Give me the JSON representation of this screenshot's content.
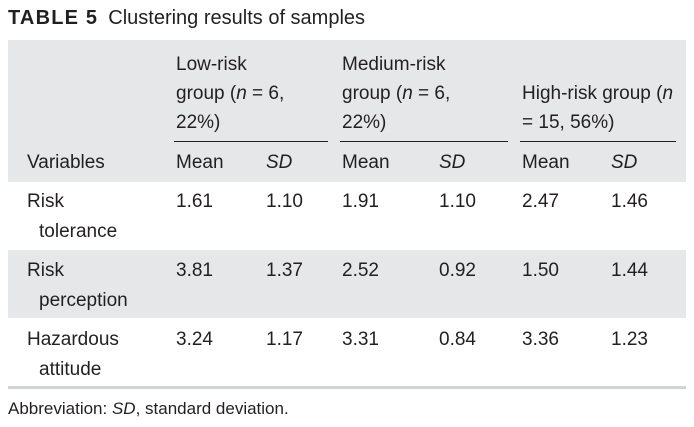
{
  "caption": {
    "label": "TABLE 5",
    "title": "Clustering results of samples"
  },
  "table": {
    "groups": [
      {
        "pre": "Low-risk group (",
        "n": "n",
        "post": " = 6, 22%)"
      },
      {
        "pre": "Medium-risk group (",
        "n": "n",
        "post": " = 6, 22%)"
      },
      {
        "pre": "High-risk group (",
        "n": "n",
        "post": " = 15, 56%)"
      }
    ],
    "variables_header": "Variables",
    "mean_label": "Mean",
    "sd_label": "SD",
    "rows": [
      {
        "variable": [
          "Risk",
          "tolerance"
        ],
        "values": [
          "1.61",
          "1.10",
          "1.91",
          "1.10",
          "2.47",
          "1.46"
        ]
      },
      {
        "variable": [
          "Risk",
          "perception"
        ],
        "values": [
          "3.81",
          "1.37",
          "2.52",
          "0.92",
          "1.50",
          "1.44"
        ]
      },
      {
        "variable": [
          "Hazardous",
          "attitude"
        ],
        "values": [
          "3.24",
          "1.17",
          "3.31",
          "0.84",
          "3.36",
          "1.23"
        ]
      }
    ]
  },
  "footnote": {
    "prefix": "Abbreviation: ",
    "abbr": "SD",
    "text": ", standard deviation."
  }
}
